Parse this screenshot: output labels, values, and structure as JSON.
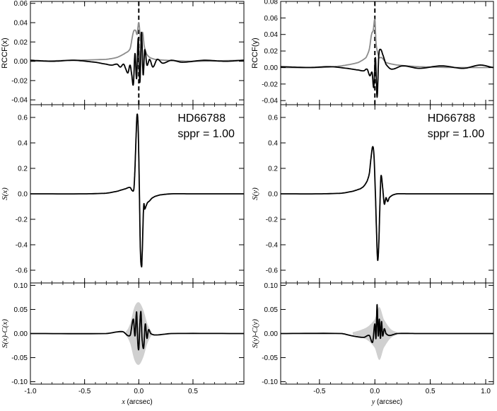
{
  "chart_data": [
    {
      "type": "line",
      "ylabel": "RCCF(x)",
      "xlim": [
        -1.0,
        0.97
      ],
      "ylim": [
        -0.045,
        0.062
      ],
      "yticks": [
        {
          "v": -0.04,
          "label": "-0.04"
        },
        {
          "v": -0.02,
          "label": "-0.02"
        },
        {
          "v": 0.0,
          "label": "0.00"
        },
        {
          "v": 0.02,
          "label": "0.02"
        },
        {
          "v": 0.04,
          "label": "0.04"
        },
        {
          "v": 0.06,
          "label": "0.06"
        }
      ],
      "xticks": [
        -1.0,
        -0.5,
        0.0,
        0.5
      ],
      "vline_x": 0.0,
      "series": [
        {
          "color": "#8c8c8c",
          "x": [
            -1.0,
            -0.6,
            -0.3,
            -0.2,
            -0.13,
            -0.08,
            -0.05,
            -0.03,
            -0.015,
            0.0,
            0.02,
            0.035,
            0.05,
            0.07,
            0.1,
            0.15,
            0.25,
            0.5,
            0.97
          ],
          "y": [
            0.0,
            0.001,
            0.002,
            0.004,
            0.008,
            0.013,
            0.03,
            0.032,
            0.028,
            0.04,
            0.02,
            0.03,
            0.016,
            0.008,
            0.004,
            0.002,
            0.001,
            0.0,
            0.001
          ]
        },
        {
          "color": "#000000",
          "x": [
            -1.0,
            -0.8,
            -0.6,
            -0.4,
            -0.3,
            -0.25,
            -0.2,
            -0.17,
            -0.14,
            -0.12,
            -0.1,
            -0.08,
            -0.065,
            -0.05,
            -0.035,
            -0.02,
            -0.005,
            0.01,
            0.025,
            0.04,
            0.055,
            0.075,
            0.1,
            0.13,
            0.17,
            0.22,
            0.3,
            0.4,
            0.6,
            0.8,
            0.97
          ],
          "y": [
            0.001,
            0.0,
            0.001,
            -0.001,
            -0.003,
            -0.004,
            -0.003,
            -0.006,
            -0.003,
            -0.008,
            -0.012,
            -0.004,
            -0.014,
            -0.024,
            0.008,
            -0.018,
            0.024,
            -0.022,
            0.03,
            -0.014,
            0.012,
            -0.004,
            0.002,
            -0.006,
            0.002,
            -0.002,
            0.001,
            -0.001,
            0.001,
            0.0,
            0.001
          ]
        }
      ]
    },
    {
      "type": "line",
      "ylabel": "S(x)",
      "xlim": [
        -1.0,
        0.97
      ],
      "ylim": [
        -0.7,
        0.7
      ],
      "yticks": [
        {
          "v": -0.6,
          "label": "-0.6"
        },
        {
          "v": -0.4,
          "label": "-0.4"
        },
        {
          "v": -0.2,
          "label": "-0.2"
        },
        {
          "v": 0.0,
          "label": "0.0"
        },
        {
          "v": 0.2,
          "label": "0.2"
        },
        {
          "v": 0.4,
          "label": "0.4"
        },
        {
          "v": 0.6,
          "label": "0.6"
        }
      ],
      "xticks": [
        -1.0,
        -0.5,
        0.0,
        0.5
      ],
      "annotations": [
        "HD66788",
        "sppr = 1.00"
      ],
      "series": [
        {
          "color": "#000000",
          "x": [
            -1.0,
            -0.5,
            -0.3,
            -0.2,
            -0.12,
            -0.08,
            -0.06,
            -0.045,
            -0.035,
            -0.025,
            -0.015,
            -0.005,
            0.005,
            0.015,
            0.025,
            0.03,
            0.045,
            0.055,
            0.065,
            0.08,
            0.1,
            0.12,
            0.15,
            0.2,
            0.3,
            0.5,
            0.97
          ],
          "y": [
            0.0,
            0.0,
            0.005,
            0.02,
            0.04,
            0.05,
            0.025,
            0.04,
            0.2,
            0.45,
            0.625,
            0.5,
            0.05,
            -0.45,
            -0.57,
            -0.5,
            -0.1,
            -0.12,
            -0.1,
            -0.07,
            -0.055,
            -0.035,
            -0.02,
            -0.008,
            0.0,
            0.0,
            0.0
          ]
        }
      ]
    },
    {
      "type": "line",
      "ylabel": "S(x)-C(x)",
      "xlim": [
        -1.0,
        0.97
      ],
      "ylim": [
        -0.105,
        0.105
      ],
      "yticks": [
        {
          "v": -0.1,
          "label": "-0.10"
        },
        {
          "v": -0.05,
          "label": "-0.05"
        },
        {
          "v": 0.0,
          "label": "0.00"
        },
        {
          "v": 0.05,
          "label": "0.05"
        },
        {
          "v": 0.1,
          "label": "0.10"
        }
      ],
      "xticks": [
        -1.0,
        -0.5,
        0.0,
        0.5
      ],
      "xlabel": "x (arcsec)",
      "xticklabels": [
        "-1.0",
        "-0.5",
        "0.0",
        "0.5"
      ],
      "band": {
        "x": [
          -0.12,
          -0.08,
          -0.04,
          0.0,
          0.04,
          0.08,
          0.12
        ],
        "half": [
          0.004,
          0.02,
          0.055,
          0.065,
          0.05,
          0.02,
          0.004
        ]
      },
      "series": [
        {
          "color": "#000000",
          "x": [
            -1.0,
            -0.3,
            -0.15,
            -0.08,
            -0.05,
            -0.035,
            -0.02,
            -0.01,
            0.0,
            0.01,
            0.02,
            0.03,
            0.045,
            0.06,
            0.075,
            0.09,
            0.11,
            0.15,
            0.3,
            0.97
          ],
          "y": [
            0.0,
            0.0,
            0.004,
            -0.004,
            0.03,
            -0.005,
            0.045,
            -0.015,
            -0.032,
            0.02,
            0.045,
            -0.01,
            -0.03,
            0.02,
            -0.01,
            0.008,
            0.0,
            -0.003,
            0.0,
            0.0
          ]
        }
      ]
    },
    {
      "type": "line",
      "ylabel": "RCCF(y)",
      "xlim": [
        -0.85,
        1.07
      ],
      "ylim": [
        -0.045,
        0.08
      ],
      "yticks": [
        {
          "v": -0.04,
          "label": "-0.04"
        },
        {
          "v": -0.02,
          "label": "-0.02"
        },
        {
          "v": 0.0,
          "label": "0.00"
        },
        {
          "v": 0.02,
          "label": "0.02"
        },
        {
          "v": 0.04,
          "label": "0.04"
        },
        {
          "v": 0.06,
          "label": "0.06"
        },
        {
          "v": 0.08,
          "label": "0.08"
        }
      ],
      "xticks": [
        -0.5,
        0.0,
        0.5,
        1.0
      ],
      "vline_x": 0.0,
      "series": [
        {
          "color": "#8c8c8c",
          "x": [
            -0.85,
            -0.5,
            -0.3,
            -0.15,
            -0.08,
            -0.05,
            -0.03,
            -0.015,
            0.0,
            0.01,
            0.025,
            0.04,
            0.06,
            0.1,
            0.2,
            0.4,
            0.7,
            1.07
          ],
          "y": [
            0.0,
            0.0,
            0.002,
            0.006,
            0.012,
            0.022,
            0.04,
            0.045,
            0.058,
            0.03,
            0.018,
            0.012,
            0.012,
            0.006,
            0.003,
            0.001,
            0.0,
            0.0
          ]
        },
        {
          "color": "#000000",
          "x": [
            -0.85,
            -0.6,
            -0.4,
            -0.25,
            -0.15,
            -0.1,
            -0.07,
            -0.045,
            -0.025,
            -0.01,
            0.005,
            0.02,
            0.035,
            0.05,
            0.07,
            0.1,
            0.15,
            0.25,
            0.4,
            0.6,
            0.8,
            0.95,
            1.07
          ],
          "y": [
            0.001,
            0.0,
            0.001,
            -0.001,
            -0.003,
            -0.004,
            -0.002,
            -0.01,
            -0.006,
            -0.024,
            0.012,
            -0.036,
            0.014,
            0.022,
            0.016,
            0.004,
            -0.002,
            0.002,
            -0.001,
            0.002,
            -0.001,
            0.003,
            0.0
          ]
        }
      ]
    },
    {
      "type": "line",
      "ylabel": "S(y)",
      "xlim": [
        -0.85,
        1.07
      ],
      "ylim": [
        -0.7,
        0.7
      ],
      "yticks": [
        {
          "v": -0.6,
          "label": "-0.6"
        },
        {
          "v": -0.4,
          "label": "-0.4"
        },
        {
          "v": -0.2,
          "label": "-0.2"
        },
        {
          "v": 0.0,
          "label": "0.0"
        },
        {
          "v": 0.2,
          "label": "0.2"
        },
        {
          "v": 0.4,
          "label": "0.4"
        },
        {
          "v": 0.6,
          "label": "0.6"
        }
      ],
      "xticks": [
        -0.5,
        0.0,
        0.5,
        1.0
      ],
      "annotations": [
        "HD66788",
        "sppr = 1.00"
      ],
      "series": [
        {
          "color": "#000000",
          "x": [
            -0.85,
            -0.5,
            -0.3,
            -0.2,
            -0.13,
            -0.1,
            -0.07,
            -0.05,
            -0.035,
            -0.02,
            -0.008,
            0.005,
            0.015,
            0.025,
            0.035,
            0.045,
            0.055,
            0.07,
            0.085,
            0.1,
            0.115,
            0.13,
            0.16,
            0.2,
            0.3,
            0.6,
            1.07
          ],
          "y": [
            0.0,
            0.0,
            0.005,
            0.02,
            0.04,
            0.06,
            0.1,
            0.16,
            0.28,
            0.37,
            0.3,
            0.0,
            -0.3,
            -0.52,
            -0.4,
            -0.1,
            0.14,
            0.05,
            -0.08,
            -0.03,
            -0.06,
            -0.03,
            -0.01,
            0.0,
            0.0,
            0.0,
            0.0
          ]
        }
      ]
    },
    {
      "type": "line",
      "ylabel": "S(y)-C(y)",
      "xlim": [
        -0.85,
        1.07
      ],
      "ylim": [
        -0.105,
        0.105
      ],
      "yticks": [
        {
          "v": -0.1,
          "label": "-0.10"
        },
        {
          "v": -0.05,
          "label": "-0.05"
        },
        {
          "v": 0.0,
          "label": "0.00"
        },
        {
          "v": 0.05,
          "label": "0.05"
        },
        {
          "v": 0.1,
          "label": "0.10"
        }
      ],
      "xticks": [
        -0.5,
        0.0,
        0.5,
        1.0
      ],
      "xlabel": "y (arcsec)",
      "xticklabels": [
        "-0.5",
        "0.0",
        "0.5",
        "1.0"
      ],
      "band": {
        "x": [
          -0.2,
          -0.12,
          -0.06,
          0.0,
          0.04,
          0.08,
          0.14,
          0.2
        ],
        "half": [
          0.003,
          0.008,
          0.015,
          0.03,
          0.055,
          0.03,
          0.01,
          0.003
        ]
      },
      "series": [
        {
          "color": "#000000",
          "x": [
            -0.85,
            -0.3,
            -0.2,
            -0.1,
            -0.05,
            -0.02,
            0.0,
            0.01,
            0.02,
            0.03,
            0.04,
            0.05,
            0.06,
            0.07,
            0.085,
            0.1,
            0.13,
            0.2,
            0.4,
            1.07
          ],
          "y": [
            0.0,
            0.0,
            -0.005,
            -0.008,
            -0.004,
            -0.018,
            0.02,
            -0.01,
            0.06,
            -0.005,
            0.03,
            -0.01,
            0.025,
            -0.005,
            0.01,
            0.0,
            -0.004,
            0.0,
            0.0,
            0.0
          ]
        }
      ]
    }
  ]
}
